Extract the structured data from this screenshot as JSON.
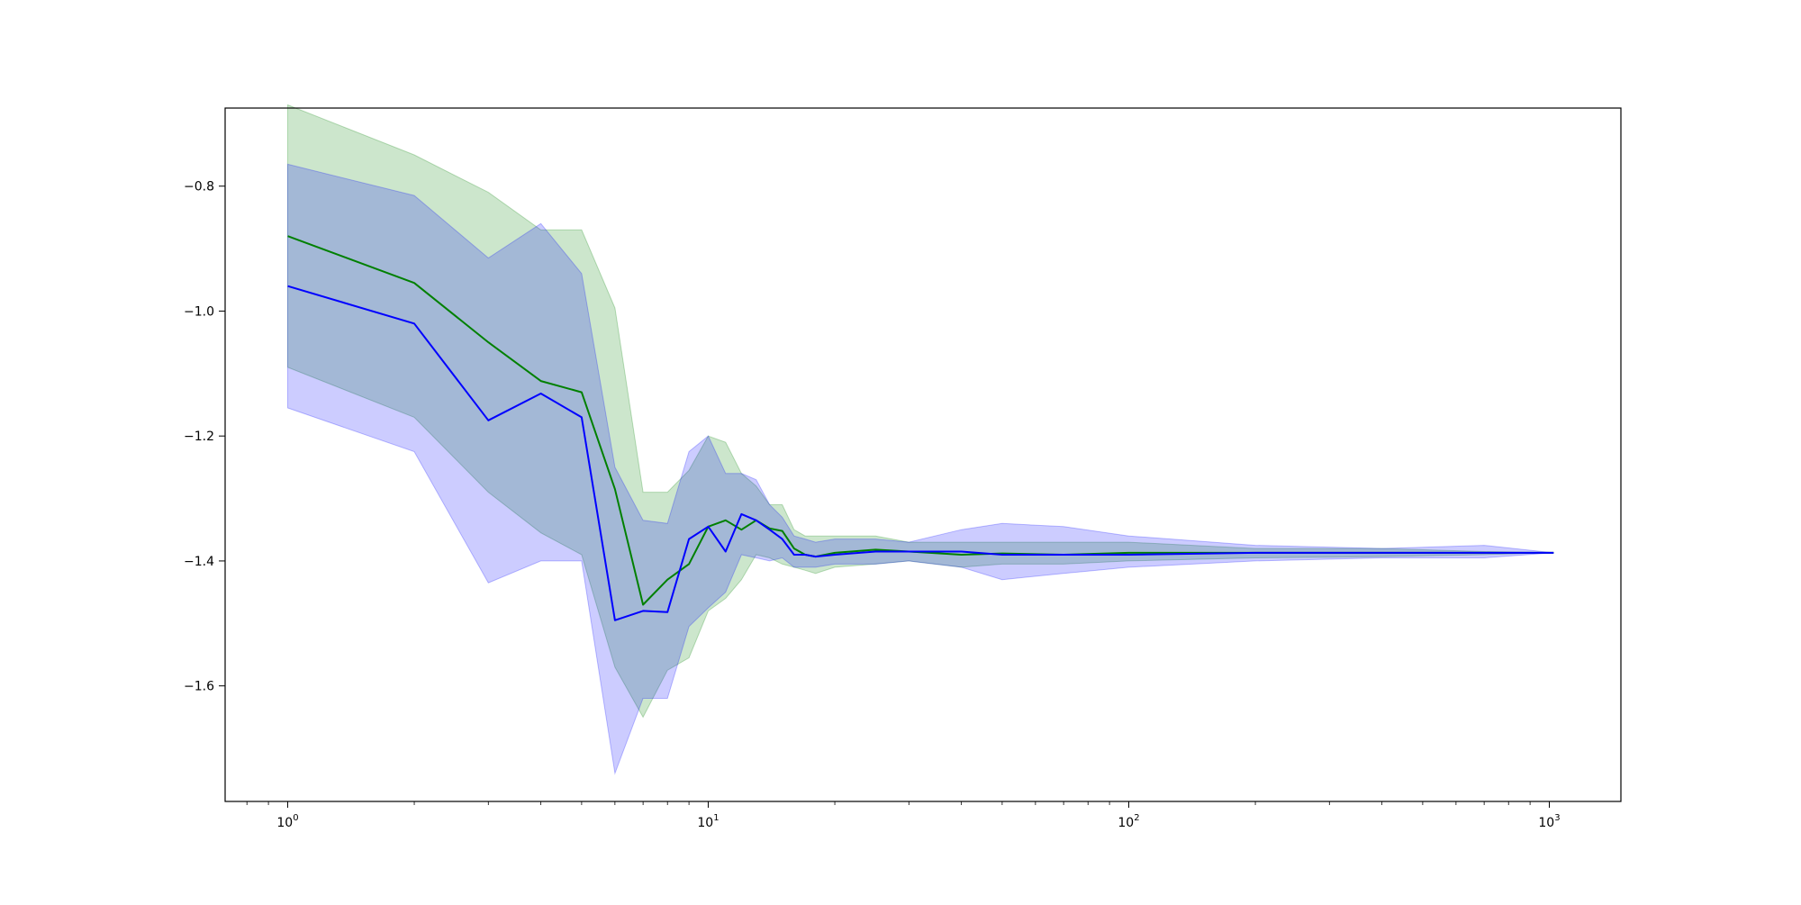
{
  "chart_data": {
    "type": "line",
    "title": "",
    "xlabel": "",
    "ylabel": "",
    "xscale": "log",
    "xlim": [
      0.71,
      1480
    ],
    "ylim": [
      -1.785,
      -0.675
    ],
    "grid": false,
    "legend": "none",
    "x_ticks": [
      {
        "value": 1,
        "base": "10",
        "exp": "0"
      },
      {
        "value": 10,
        "base": "10",
        "exp": "1"
      },
      {
        "value": 100,
        "base": "10",
        "exp": "2"
      },
      {
        "value": 1000,
        "base": "10",
        "exp": "3"
      }
    ],
    "y_ticks": [
      {
        "value": -0.8,
        "label": "−0.8"
      },
      {
        "value": -1.0,
        "label": "−1.0"
      },
      {
        "value": -1.2,
        "label": "−1.2"
      },
      {
        "value": -1.4,
        "label": "−1.4"
      },
      {
        "value": -1.6,
        "label": "−1.6"
      }
    ],
    "series": [
      {
        "color": "#008000",
        "band_color": "#008000",
        "band_opacity": 0.2,
        "x": [
          1,
          2,
          3,
          4,
          5,
          6,
          7,
          8,
          9,
          10,
          11,
          12,
          13,
          14,
          15,
          16,
          17,
          18,
          20,
          25,
          30,
          40,
          50,
          70,
          100,
          200,
          400,
          700,
          1024
        ],
        "y": [
          -0.88,
          -0.955,
          -1.05,
          -1.112,
          -1.13,
          -1.285,
          -1.47,
          -1.43,
          -1.405,
          -1.345,
          -1.335,
          -1.35,
          -1.335,
          -1.348,
          -1.352,
          -1.38,
          -1.39,
          -1.393,
          -1.387,
          -1.382,
          -1.385,
          -1.39,
          -1.388,
          -1.39,
          -1.387,
          -1.387,
          -1.387,
          -1.387,
          -1.387
        ],
        "upper": [
          -0.67,
          -0.75,
          -0.81,
          -0.87,
          -0.87,
          -0.995,
          -1.29,
          -1.29,
          -1.255,
          -1.2,
          -1.21,
          -1.26,
          -1.28,
          -1.31,
          -1.31,
          -1.35,
          -1.36,
          -1.36,
          -1.36,
          -1.36,
          -1.37,
          -1.37,
          -1.37,
          -1.37,
          -1.37,
          -1.38,
          -1.38,
          -1.385,
          -1.387
        ],
        "lower": [
          -1.09,
          -1.17,
          -1.29,
          -1.355,
          -1.39,
          -1.57,
          -1.65,
          -1.575,
          -1.555,
          -1.48,
          -1.46,
          -1.43,
          -1.39,
          -1.395,
          -1.405,
          -1.41,
          -1.415,
          -1.42,
          -1.41,
          -1.405,
          -1.4,
          -1.41,
          -1.405,
          -1.405,
          -1.4,
          -1.395,
          -1.393,
          -1.39,
          -1.387
        ]
      },
      {
        "color": "#0000ff",
        "band_color": "#0000ff",
        "band_opacity": 0.2,
        "x": [
          1,
          2,
          3,
          4,
          5,
          6,
          7,
          8,
          9,
          10,
          11,
          12,
          13,
          14,
          15,
          16,
          17,
          18,
          20,
          25,
          30,
          40,
          50,
          70,
          100,
          200,
          400,
          700,
          1024
        ],
        "y": [
          -0.96,
          -1.02,
          -1.175,
          -1.132,
          -1.17,
          -1.495,
          -1.48,
          -1.482,
          -1.365,
          -1.345,
          -1.385,
          -1.325,
          -1.335,
          -1.35,
          -1.365,
          -1.39,
          -1.39,
          -1.393,
          -1.39,
          -1.385,
          -1.385,
          -1.385,
          -1.39,
          -1.39,
          -1.39,
          -1.387,
          -1.387,
          -1.387,
          -1.387
        ],
        "upper": [
          -0.765,
          -0.815,
          -0.915,
          -0.86,
          -0.94,
          -1.25,
          -1.335,
          -1.34,
          -1.225,
          -1.2,
          -1.26,
          -1.26,
          -1.27,
          -1.31,
          -1.33,
          -1.36,
          -1.365,
          -1.37,
          -1.365,
          -1.365,
          -1.37,
          -1.35,
          -1.34,
          -1.345,
          -1.36,
          -1.375,
          -1.38,
          -1.375,
          -1.387
        ],
        "lower": [
          -1.155,
          -1.225,
          -1.435,
          -1.4,
          -1.4,
          -1.74,
          -1.62,
          -1.62,
          -1.505,
          -1.475,
          -1.45,
          -1.39,
          -1.395,
          -1.4,
          -1.395,
          -1.41,
          -1.41,
          -1.41,
          -1.405,
          -1.405,
          -1.4,
          -1.41,
          -1.43,
          -1.42,
          -1.41,
          -1.4,
          -1.395,
          -1.395,
          -1.387
        ]
      }
    ]
  }
}
